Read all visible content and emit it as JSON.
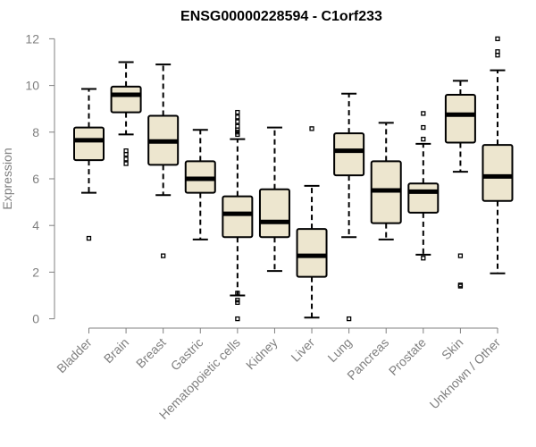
{
  "chart_data": {
    "type": "boxplot",
    "title": "ENSG00000228594 - C1orf233",
    "xlabel": "",
    "ylabel": "Expression",
    "ylim": [
      0,
      12
    ],
    "yticks": [
      0,
      2,
      4,
      6,
      8,
      10,
      12
    ],
    "categories": [
      "Bladder",
      "Brain",
      "Breast",
      "Gastric",
      "Hematopoietic cells",
      "Kidney",
      "Liver",
      "Lung",
      "Pancreas",
      "Prostate",
      "Skin",
      "Unknown / Other"
    ],
    "boxes": [
      {
        "q1": 6.8,
        "median": 7.65,
        "q3": 8.2,
        "whisker_low": 5.4,
        "whisker_high": 9.85,
        "outliers": [
          3.45
        ]
      },
      {
        "q1": 8.85,
        "median": 9.6,
        "q3": 9.95,
        "whisker_low": 7.9,
        "whisker_high": 11.0,
        "outliers": [
          6.65,
          6.85,
          7.05,
          7.2
        ]
      },
      {
        "q1": 6.6,
        "median": 7.6,
        "q3": 8.7,
        "whisker_low": 5.3,
        "whisker_high": 10.9,
        "outliers": [
          2.7
        ]
      },
      {
        "q1": 5.4,
        "median": 6.0,
        "q3": 6.75,
        "whisker_low": 3.4,
        "whisker_high": 8.1,
        "outliers": []
      },
      {
        "q1": 3.5,
        "median": 4.5,
        "q3": 5.25,
        "whisker_low": 1.0,
        "whisker_high": 7.7,
        "outliers": [
          0.0,
          0.7,
          0.8,
          1.1,
          7.9,
          8.0,
          8.1,
          8.25,
          8.45,
          8.65,
          8.85
        ]
      },
      {
        "q1": 3.5,
        "median": 4.15,
        "q3": 5.55,
        "whisker_low": 2.05,
        "whisker_high": 8.2,
        "outliers": []
      },
      {
        "q1": 1.8,
        "median": 2.7,
        "q3": 3.85,
        "whisker_low": 0.05,
        "whisker_high": 5.7,
        "outliers": [
          8.15
        ]
      },
      {
        "q1": 6.15,
        "median": 7.2,
        "q3": 7.95,
        "whisker_low": 3.5,
        "whisker_high": 9.65,
        "outliers": [
          0.0
        ]
      },
      {
        "q1": 4.1,
        "median": 5.5,
        "q3": 6.75,
        "whisker_low": 3.4,
        "whisker_high": 8.4,
        "outliers": []
      },
      {
        "q1": 4.55,
        "median": 5.45,
        "q3": 5.8,
        "whisker_low": 2.75,
        "whisker_high": 7.5,
        "outliers": [
          2.6,
          7.7,
          8.2,
          8.8
        ]
      },
      {
        "q1": 7.55,
        "median": 8.75,
        "q3": 9.6,
        "whisker_low": 6.3,
        "whisker_high": 10.2,
        "outliers": [
          1.4,
          1.45,
          2.7
        ]
      },
      {
        "q1": 5.05,
        "median": 6.1,
        "q3": 7.45,
        "whisker_low": 1.95,
        "whisker_high": 10.65,
        "outliers": [
          11.3,
          11.45,
          12.0
        ]
      }
    ]
  },
  "colors": {
    "box_fill": "#ede6cf",
    "box_stroke": "#000000",
    "axis": "#808080",
    "tick_text": "#808080",
    "title": "#000000"
  }
}
